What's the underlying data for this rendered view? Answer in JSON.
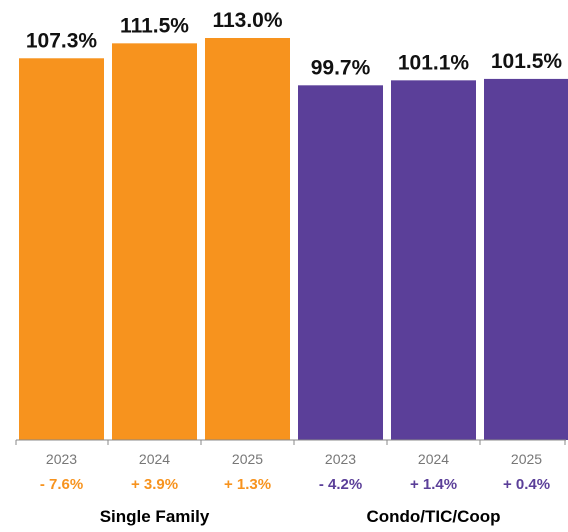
{
  "colors": {
    "single_family": "#F7931E",
    "condo": "#5B3F99",
    "axis": "#888888"
  },
  "chart_data": {
    "type": "bar",
    "ylim": [
      0,
      113.0
    ],
    "grid": false,
    "groups": [
      {
        "name": "Single Family",
        "color_key": "single_family",
        "bars": [
          {
            "year": "2023",
            "value": 107.3,
            "label": "107.3%",
            "change": "- 7.6%"
          },
          {
            "year": "2024",
            "value": 111.5,
            "label": "111.5%",
            "change": "+ 3.9%"
          },
          {
            "year": "2025",
            "value": 113.0,
            "label": "113.0%",
            "change": "+ 1.3%"
          }
        ]
      },
      {
        "name": "Condo/TIC/Coop",
        "color_key": "condo",
        "bars": [
          {
            "year": "2023",
            "value": 99.7,
            "label": "99.7%",
            "change": "- 4.2%"
          },
          {
            "year": "2024",
            "value": 101.1,
            "label": "101.1%",
            "change": "+ 1.4%"
          },
          {
            "year": "2025",
            "value": 101.5,
            "label": "101.5%",
            "change": "+ 0.4%"
          }
        ]
      }
    ]
  }
}
